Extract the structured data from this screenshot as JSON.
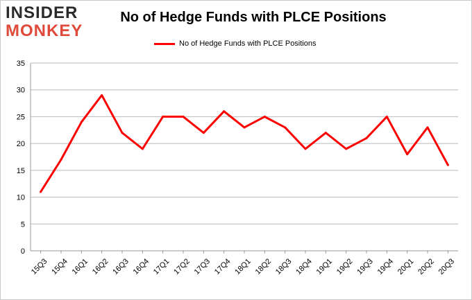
{
  "brand": {
    "line1": "INSIDER",
    "line2": "MONKEY"
  },
  "chart_data": {
    "type": "line",
    "title": "No of Hedge Funds with PLCE Positions",
    "xlabel": "",
    "ylabel": "",
    "categories": [
      "15Q3",
      "15Q4",
      "16Q1",
      "16Q2",
      "16Q3",
      "16Q4",
      "17Q1",
      "17Q2",
      "17Q3",
      "17Q4",
      "18Q1",
      "18Q2",
      "18Q3",
      "18Q4",
      "19Q1",
      "19Q2",
      "19Q3",
      "19Q4",
      "20Q1",
      "20Q2",
      "20Q3"
    ],
    "series": [
      {
        "name": "No of Hedge Funds with PLCE Positions",
        "values": [
          11,
          17,
          24,
          29,
          22,
          19,
          25,
          25,
          22,
          26,
          23,
          25,
          23,
          19,
          22,
          19,
          21,
          25,
          18,
          23,
          16
        ],
        "color": "#ff0000"
      }
    ],
    "ylim": [
      0,
      35
    ],
    "yticks": [
      0,
      5,
      10,
      15,
      20,
      25,
      30,
      35
    ],
    "grid": true,
    "legend_position": "top-center"
  }
}
